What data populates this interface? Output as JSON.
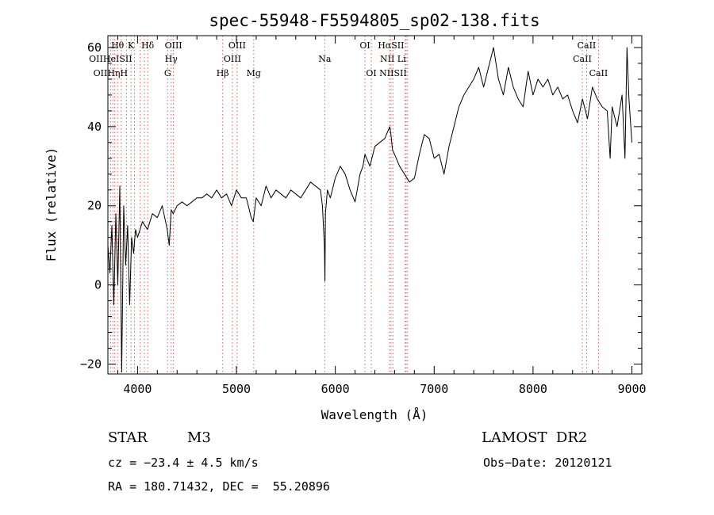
{
  "chart_data": {
    "type": "line",
    "title": "spec-55948-F5594805_sp02-138.fits",
    "xlabel": "Wavelength (Å)",
    "ylabel": "Flux (relative)",
    "xlim": [
      3700,
      9100
    ],
    "ylim": [
      -22.5,
      63
    ],
    "grid": false,
    "x_ticks": [
      4000,
      5000,
      6000,
      7000,
      8000,
      9000
    ],
    "y_ticks": [
      -20,
      0,
      20,
      40,
      60
    ],
    "x_tick_labels": [
      "4000",
      "5000",
      "6000",
      "7000",
      "8000",
      "9000"
    ],
    "y_tick_labels": [
      "−20",
      "0",
      "20",
      "40",
      "60"
    ],
    "series": [
      {
        "x": [
          3700,
          3720,
          3740,
          3760,
          3780,
          3800,
          3820,
          3840,
          3860,
          3880,
          3900,
          3920,
          3940,
          3960,
          3980,
          4000,
          4050,
          4100,
          4150,
          4200,
          4250,
          4300,
          4320,
          4340,
          4360,
          4400,
          4450,
          4500,
          4550,
          4600,
          4650,
          4700,
          4750,
          4800,
          4850,
          4900,
          4950,
          5000,
          5050,
          5100,
          5150,
          5170,
          5200,
          5250,
          5300,
          5350,
          5400,
          5450,
          5500,
          5550,
          5600,
          5650,
          5700,
          5750,
          5800,
          5850,
          5870,
          5890,
          5895,
          5900,
          5920,
          5950,
          6000,
          6050,
          6100,
          6150,
          6200,
          6250,
          6280,
          6300,
          6350,
          6400,
          6450,
          6500,
          6550,
          6563,
          6580,
          6600,
          6650,
          6700,
          6750,
          6800,
          6850,
          6900,
          6950,
          7000,
          7050,
          7100,
          7150,
          7200,
          7250,
          7300,
          7350,
          7400,
          7450,
          7500,
          7550,
          7600,
          7650,
          7700,
          7750,
          7800,
          7850,
          7900,
          7950,
          8000,
          8050,
          8100,
          8150,
          8200,
          8250,
          8300,
          8350,
          8400,
          8450,
          8500,
          8550,
          8600,
          8650,
          8700,
          8750,
          8780,
          8800,
          8850,
          8900,
          8930,
          8950,
          8970,
          9000
        ],
        "y": [
          10,
          3,
          15,
          -5,
          18,
          0,
          25,
          -22,
          20,
          5,
          15,
          -5,
          12,
          8,
          14,
          12,
          16,
          14,
          18,
          17,
          20,
          14,
          10,
          19,
          18,
          20,
          21,
          20,
          21,
          22,
          22,
          23,
          22,
          24,
          22,
          23,
          20,
          24,
          22,
          22,
          17,
          16,
          22,
          20,
          25,
          22,
          24,
          23,
          22,
          24,
          23,
          22,
          24,
          26,
          25,
          24,
          20,
          10,
          1,
          18,
          24,
          22,
          27,
          30,
          28,
          24,
          21,
          28,
          30,
          33,
          30,
          35,
          36,
          37,
          40,
          38,
          34,
          33,
          30,
          28,
          26,
          27,
          33,
          38,
          37,
          32,
          33,
          28,
          35,
          40,
          45,
          48,
          50,
          52,
          55,
          50,
          55,
          60,
          52,
          48,
          55,
          50,
          47,
          45,
          54,
          48,
          52,
          50,
          52,
          48,
          50,
          47,
          48,
          44,
          41,
          47,
          42,
          50,
          47,
          45,
          44,
          32,
          45,
          40,
          48,
          32,
          60,
          47,
          36
        ]
      }
    ],
    "lines": [
      {
        "label": "Hθ",
        "x": 3798,
        "row": 0
      },
      {
        "label": "K",
        "x": 3934,
        "row": 0
      },
      {
        "label": "Hδ",
        "x": 4102,
        "row": 0
      },
      {
        "label": "OIII",
        "x": 4363,
        "row": 0
      },
      {
        "label": "OIII",
        "x": 5007,
        "row": 0
      },
      {
        "label": "OI",
        "x": 6300,
        "row": 0
      },
      {
        "label": "HαSII",
        "x": 6563,
        "row": 0
      },
      {
        "label": "CaII",
        "x": 8542,
        "row": 0
      },
      {
        "label": "OIIHeISII",
        "x": 3727,
        "row": 1
      },
      {
        "label": "Hγ",
        "x": 4340,
        "row": 1
      },
      {
        "label": "OIII",
        "x": 4959,
        "row": 1
      },
      {
        "label": "Na",
        "x": 5893,
        "row": 1
      },
      {
        "label": "NII Li",
        "x": 6583,
        "row": 1
      },
      {
        "label": "CaII",
        "x": 8498,
        "row": 1
      },
      {
        "label": "OIIHηH",
        "x": 3727,
        "row": 2
      },
      {
        "label": "G",
        "x": 4304,
        "row": 2
      },
      {
        "label": "Hβ",
        "x": 4861,
        "row": 2
      },
      {
        "label": "Mg",
        "x": 5175,
        "row": 2
      },
      {
        "label": "OI",
        "x": 6364,
        "row": 2
      },
      {
        "label": "NIISII",
        "x": 6584,
        "row": 2
      },
      {
        "label": "CaII",
        "x": 8662,
        "row": 2
      }
    ],
    "line_marker_x": [
      3727,
      3750,
      3770,
      3798,
      3835,
      3889,
      3934,
      3969,
      4026,
      4069,
      4102,
      4304,
      4340,
      4363,
      4861,
      4959,
      5007,
      5175,
      5893,
      6300,
      6364,
      6548,
      6563,
      6583,
      6707,
      6716,
      6731,
      8498,
      8542,
      8662
    ]
  },
  "footer": {
    "object_class": "STAR",
    "subclass": "M3",
    "survey": "LAMOST  DR2",
    "cz": "cz = −23.4 ± 4.5 km/s",
    "obs_date": "Obs−Date: 20120121",
    "coords": "RA = 180.71432, DEC =  55.20896"
  }
}
